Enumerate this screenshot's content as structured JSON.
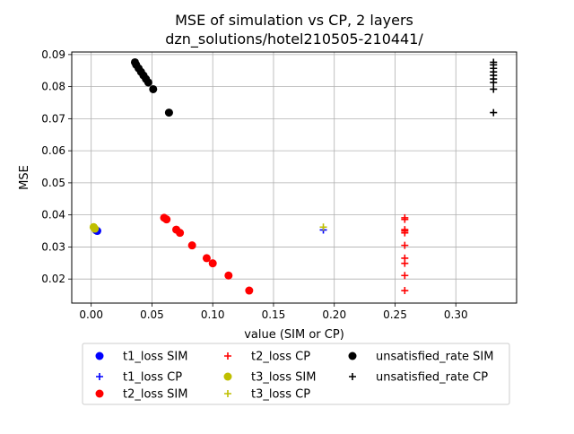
{
  "chart_data": {
    "type": "scatter",
    "title": "MSE of simulation vs CP, 2 layers",
    "subtitle": "dzn_solutions/hotel210505-210441/",
    "xlabel": "value (SIM or CP)",
    "ylabel": "MSE",
    "xlim": [
      -0.016,
      0.35
    ],
    "ylim": [
      0.0125,
      0.0908
    ],
    "x_ticks": [
      "0.00",
      "0.05",
      "0.10",
      "0.15",
      "0.20",
      "0.25",
      "0.30"
    ],
    "y_ticks": [
      "0.02",
      "0.03",
      "0.04",
      "0.05",
      "0.06",
      "0.07",
      "0.08",
      "0.09"
    ],
    "grid": true,
    "legend_position": "below plot, 3 columns",
    "series": [
      {
        "name": "t1_loss SIM",
        "marker": "circle",
        "color": "#0000ff",
        "x": [
          0.005,
          0.004
        ],
        "y": [
          0.035,
          0.0352
        ]
      },
      {
        "name": "t1_loss CP",
        "marker": "plus",
        "color": "#0000ff",
        "x": [
          0.191
        ],
        "y": [
          0.0353
        ]
      },
      {
        "name": "t2_loss SIM",
        "marker": "circle",
        "color": "#ff0000",
        "x": [
          0.06,
          0.062,
          0.07,
          0.073,
          0.083,
          0.095,
          0.1,
          0.113,
          0.13
        ],
        "y": [
          0.0391,
          0.0386,
          0.0354,
          0.0344,
          0.0305,
          0.0265,
          0.0249,
          0.0211,
          0.0164
        ]
      },
      {
        "name": "t2_loss CP",
        "marker": "plus",
        "color": "#ff0000",
        "x": [
          0.258,
          0.258,
          0.258,
          0.258,
          0.258,
          0.258,
          0.258,
          0.258,
          0.258,
          0.258
        ],
        "y": [
          0.0391,
          0.0386,
          0.0354,
          0.0344,
          0.0305,
          0.0265,
          0.0249,
          0.0211,
          0.0164,
          0.035
        ]
      },
      {
        "name": "t3_loss SIM",
        "marker": "circle",
        "color": "#bfbf00",
        "x": [
          0.002,
          0.003
        ],
        "y": [
          0.0362,
          0.0357
        ]
      },
      {
        "name": "t3_loss CP",
        "marker": "plus",
        "color": "#bfbf00",
        "x": [
          0.191
        ],
        "y": [
          0.0362
        ]
      },
      {
        "name": "unsatisfied_rate SIM",
        "marker": "circle",
        "color": "#000000",
        "x": [
          0.036,
          0.037,
          0.039,
          0.041,
          0.043,
          0.045,
          0.047,
          0.051,
          0.064
        ],
        "y": [
          0.0876,
          0.0868,
          0.0857,
          0.0846,
          0.0835,
          0.0824,
          0.0813,
          0.0792,
          0.0719
        ]
      },
      {
        "name": "unsatisfied_rate CP",
        "marker": "plus",
        "color": "#000000",
        "x": [
          0.331,
          0.331,
          0.331,
          0.331,
          0.331,
          0.331,
          0.331,
          0.331,
          0.331
        ],
        "y": [
          0.0876,
          0.0868,
          0.0857,
          0.0846,
          0.0835,
          0.0824,
          0.0813,
          0.0792,
          0.0719
        ]
      }
    ]
  }
}
